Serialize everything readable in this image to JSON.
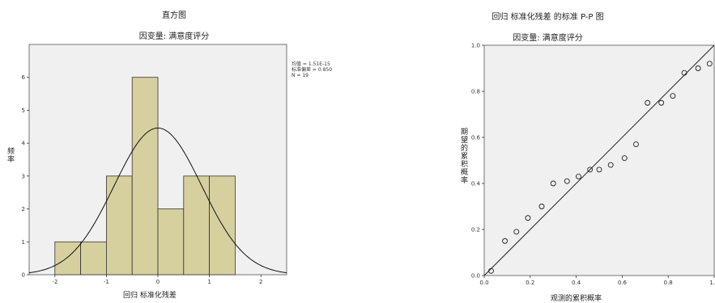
{
  "histogram": {
    "title": "直方图",
    "subtitle": "因变量: 满意度评分",
    "xlabel": "回归 标准化残差",
    "ylabel": "频率",
    "stats": {
      "mean": "均值 = 1.51E-15",
      "std": "标准偏差 = 0.850",
      "n": "N = 19"
    }
  },
  "pp_plot": {
    "title": "回归 标准化残差 的标准 P-P 图",
    "subtitle": "因变量: 满意度评分",
    "xlabel": "观测的累积概率",
    "ylabel": "期望的累积概率"
  },
  "chart_data": [
    {
      "type": "bar",
      "title": "直方图",
      "subtitle": "因变量: 满意度评分",
      "xlabel": "回归 标准化残差",
      "ylabel": "频率",
      "bins": [
        {
          "x0": -2.0,
          "x1": -1.5,
          "count": 1
        },
        {
          "x0": -1.5,
          "x1": -1.0,
          "count": 1
        },
        {
          "x0": -1.0,
          "x1": -0.5,
          "count": 3
        },
        {
          "x0": -0.5,
          "x1": 0.0,
          "count": 6
        },
        {
          "x0": 0.0,
          "x1": 0.5,
          "count": 2
        },
        {
          "x0": 0.5,
          "x1": 1.0,
          "count": 3
        },
        {
          "x0": 1.0,
          "x1": 1.5,
          "count": 3
        }
      ],
      "normal_curve": {
        "mean": 0.0,
        "std": 0.85,
        "n": 19,
        "bin_width": 0.5
      },
      "xlim": [
        -2.5,
        2.5
      ],
      "ylim": [
        0,
        7
      ],
      "xticks": [
        -2,
        -1,
        0,
        1,
        2
      ],
      "yticks": [
        0,
        1,
        2,
        3,
        4,
        5,
        6
      ],
      "bar_color": "#d6d09e",
      "plot_bg": "#f0f0f0"
    },
    {
      "type": "scatter",
      "title": "回归 标准化残差 的标准 P-P 图",
      "subtitle": "因变量: 满意度评分",
      "xlabel": "观测的累积概率",
      "ylabel": "期望的累积概率",
      "xlim": [
        0,
        1
      ],
      "ylim": [
        0,
        1
      ],
      "xticks": [
        "0.0",
        "0.2",
        "0.4",
        "0.6",
        "0.8",
        "1.0"
      ],
      "yticks": [
        "0.0",
        "0.2",
        "0.4",
        "0.6",
        "0.8",
        "1.0"
      ],
      "points": [
        [
          0.03,
          0.02
        ],
        [
          0.09,
          0.15
        ],
        [
          0.14,
          0.19
        ],
        [
          0.19,
          0.25
        ],
        [
          0.25,
          0.3
        ],
        [
          0.3,
          0.4
        ],
        [
          0.36,
          0.41
        ],
        [
          0.41,
          0.43
        ],
        [
          0.46,
          0.46
        ],
        [
          0.5,
          0.46
        ],
        [
          0.55,
          0.48
        ],
        [
          0.61,
          0.51
        ],
        [
          0.66,
          0.57
        ],
        [
          0.71,
          0.75
        ],
        [
          0.77,
          0.75
        ],
        [
          0.82,
          0.78
        ],
        [
          0.87,
          0.88
        ],
        [
          0.93,
          0.9
        ],
        [
          0.98,
          0.92
        ]
      ],
      "reference_line": [
        [
          0,
          0
        ],
        [
          1,
          1
        ]
      ],
      "plot_bg": "#f0f0f0"
    }
  ]
}
